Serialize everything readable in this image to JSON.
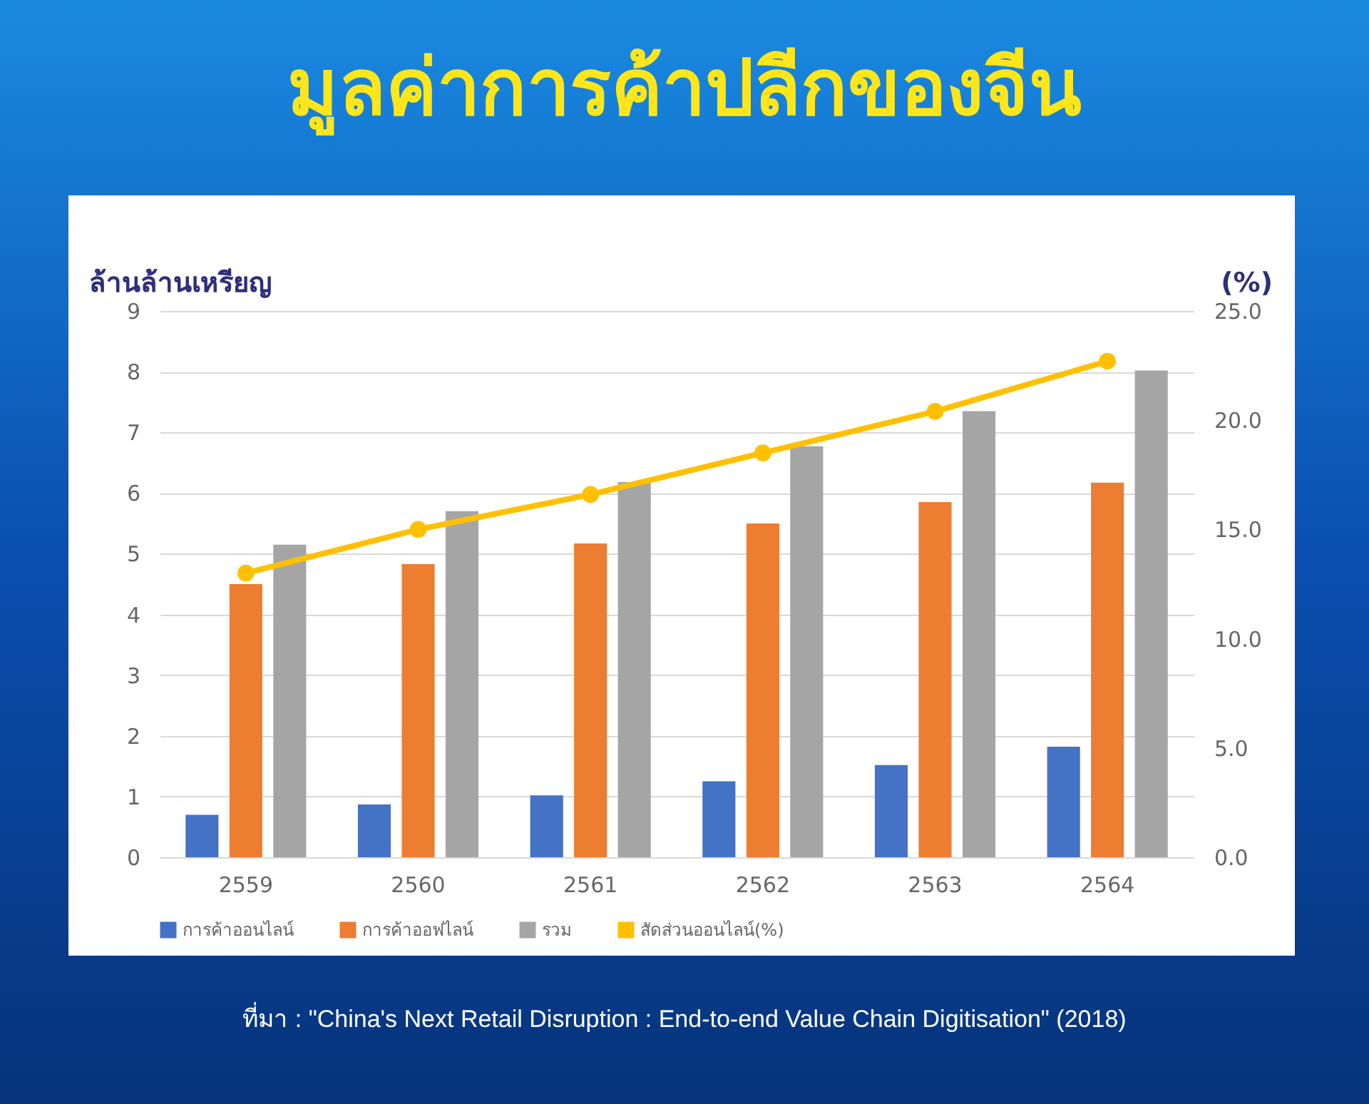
{
  "chart_data": {
    "type": "bar",
    "title": "มูลค่าการค้าปลีกของจีน",
    "categories": [
      "2559",
      "2560",
      "2561",
      "2562",
      "2563",
      "2564"
    ],
    "series": [
      {
        "name": "การค้าออนไลน์",
        "color": "#4472c4",
        "values": [
          0.7,
          0.87,
          1.02,
          1.25,
          1.52,
          1.82
        ]
      },
      {
        "name": "การค้าออฟไลน์",
        "color": "#ed7d31",
        "values": [
          4.5,
          4.83,
          5.17,
          5.5,
          5.85,
          6.17
        ]
      },
      {
        "name": "รวม",
        "color": "#a5a5a5",
        "values": [
          5.15,
          5.7,
          6.18,
          6.77,
          7.35,
          8.02
        ]
      },
      {
        "name": "สัดส่วนออนไลน์(%)",
        "color": "#ffc000",
        "type": "line",
        "axis": "y2",
        "marker": "circle",
        "values": [
          13.0,
          15.0,
          16.6,
          18.5,
          20.4,
          22.7
        ]
      }
    ],
    "ylabel": "ล้านล้านเหรียญ",
    "y2label": "(%)",
    "ylim": [
      0,
      9
    ],
    "yticks": [
      0,
      1,
      2,
      3,
      4,
      5,
      6,
      7,
      8,
      9
    ],
    "y2lim": [
      0,
      25
    ],
    "y2ticks": [
      {
        "value": 0,
        "label": "0.0"
      },
      {
        "value": 5,
        "label": "5.0"
      },
      {
        "value": 10,
        "label": "10.0"
      },
      {
        "value": 15,
        "label": "15.0"
      },
      {
        "value": 20,
        "label": "20.0"
      },
      {
        "value": 25,
        "label": "25.0"
      }
    ],
    "grid": "y",
    "legend": "bottom",
    "annotations": [
      "ที่มา : \"China's Next Retail Disruption : End-to-end Value Chain Digitisation\" (2018)"
    ]
  }
}
